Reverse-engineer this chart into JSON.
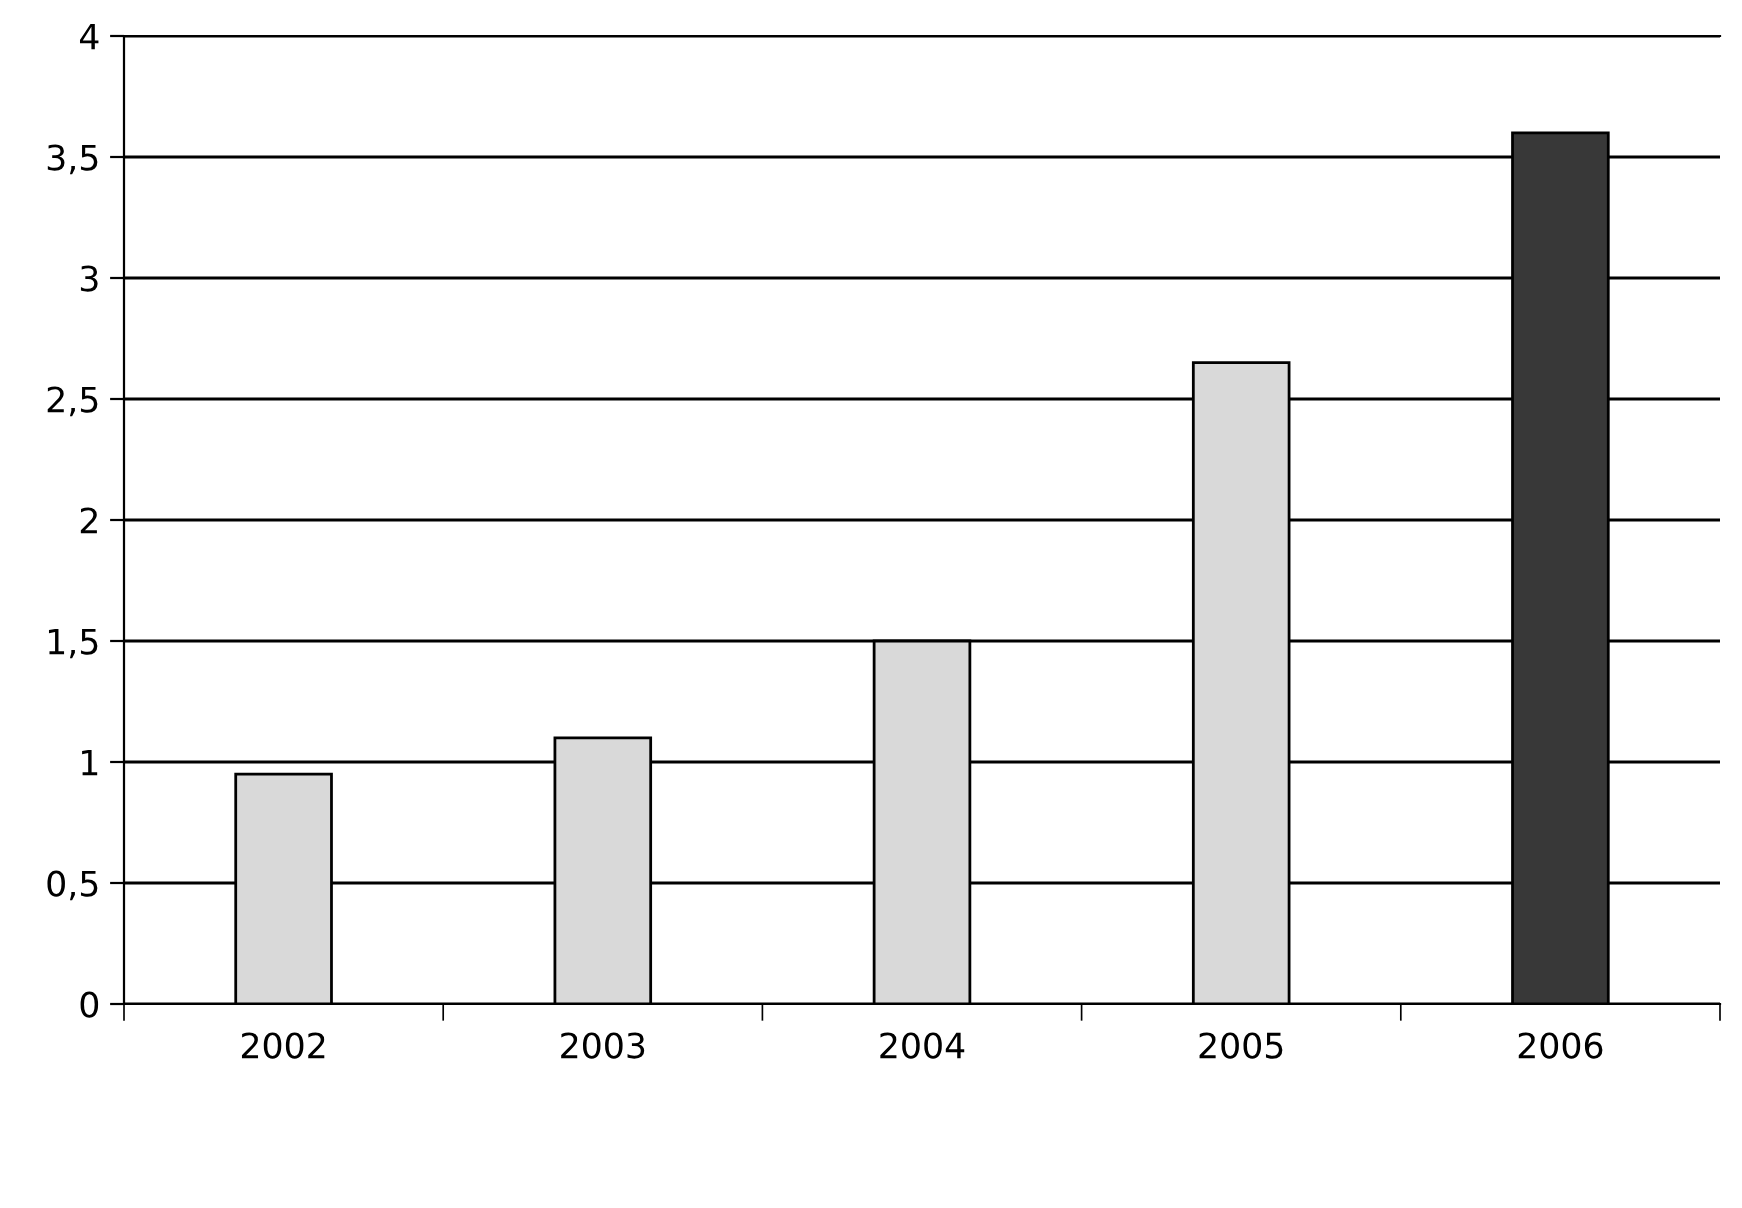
{
  "chart_data": {
    "type": "bar",
    "categories": [
      "2002",
      "2003",
      "2004",
      "2005",
      "2006"
    ],
    "series": [
      {
        "color": "#d9d9d9",
        "values": [
          0.95,
          1.1,
          1.5,
          2.65,
          null
        ]
      },
      {
        "color": "#383838",
        "values": [
          null,
          null,
          null,
          null,
          3.6
        ]
      }
    ],
    "ylim": [
      0,
      4
    ],
    "yticks": [
      0,
      {
        "value": 0.5,
        "label": "0,5"
      },
      1,
      {
        "value": 1.5,
        "label": "1,5"
      },
      2,
      {
        "value": 2.5,
        "label": "2,5"
      },
      3,
      {
        "value": 3.5,
        "label": "3,5"
      },
      4
    ],
    "grid": "y"
  }
}
